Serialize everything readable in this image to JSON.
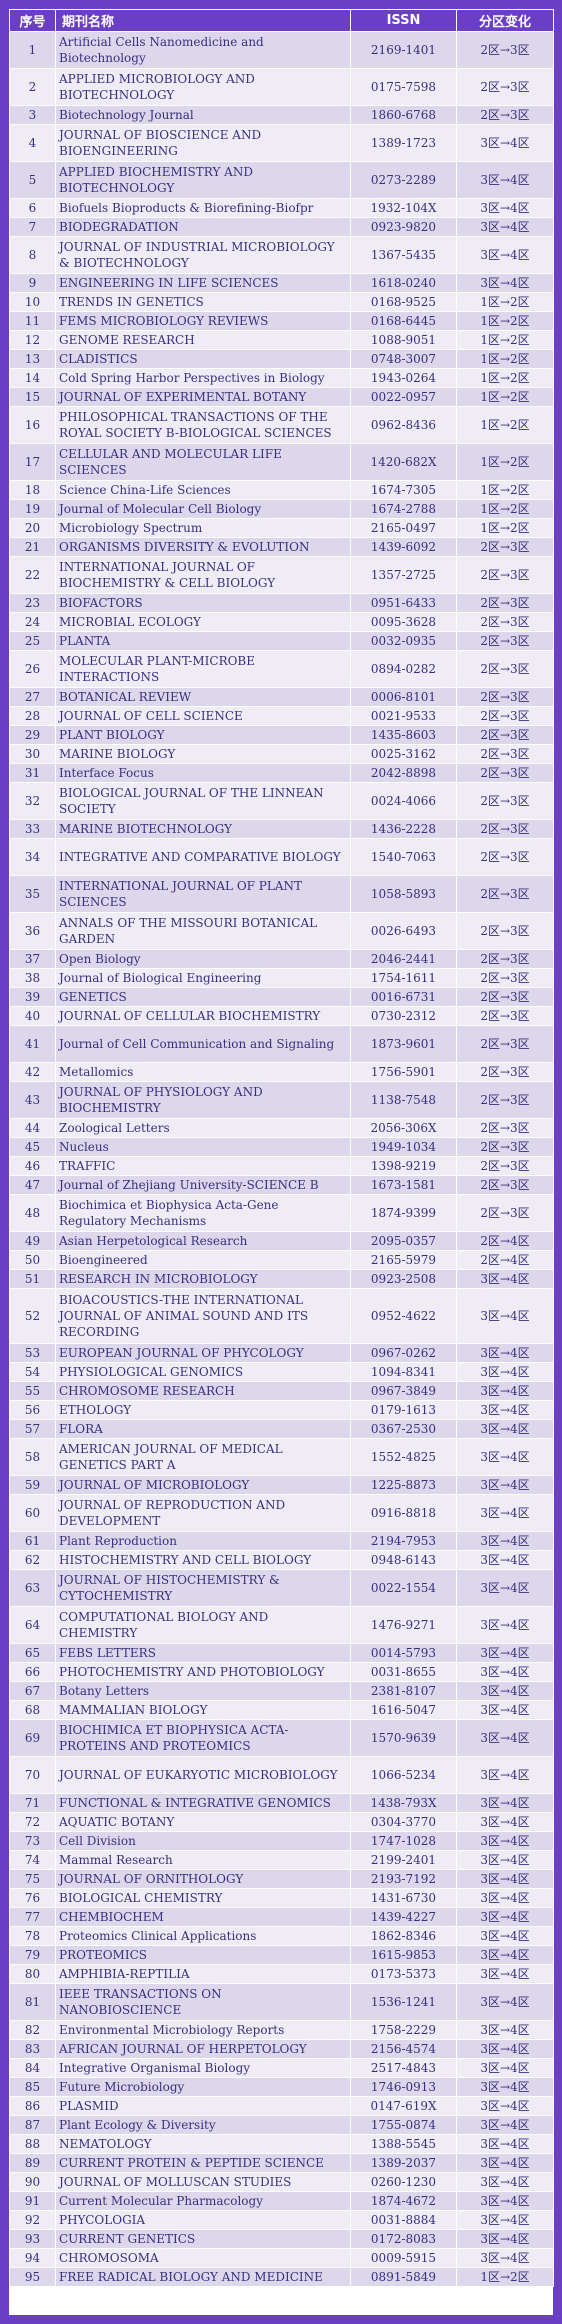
{
  "header": {
    "no": "序号",
    "name": "期刊名称",
    "issn": "ISSN",
    "change": "分区变化"
  },
  "rows": [
    {
      "no": "1",
      "name": "Artificial Cells Nanomedicine and Biotechnology",
      "issn": "2169-1401",
      "change": "2区→3区"
    },
    {
      "no": "2",
      "name": "APPLIED MICROBIOLOGY AND BIOTECHNOLOGY",
      "issn": "0175-7598",
      "change": "2区→3区"
    },
    {
      "no": "3",
      "name": "Biotechnology Journal",
      "issn": "1860-6768",
      "change": "2区→3区"
    },
    {
      "no": "4",
      "name": "JOURNAL OF BIOSCIENCE AND BIOENGINEERING",
      "issn": "1389-1723",
      "change": "3区→4区"
    },
    {
      "no": "5",
      "name": "APPLIED BIOCHEMISTRY AND BIOTECHNOLOGY",
      "issn": "0273-2289",
      "change": "3区→4区"
    },
    {
      "no": "6",
      "name": "Biofuels Bioproducts & Biorefining-Biofpr",
      "issn": "1932-104X",
      "change": "3区→4区"
    },
    {
      "no": "7",
      "name": "BIODEGRADATION",
      "issn": "0923-9820",
      "change": "3区→4区"
    },
    {
      "no": "8",
      "name": "JOURNAL OF INDUSTRIAL MICROBIOLOGY & BIOTECHNOLOGY",
      "issn": "1367-5435",
      "change": "3区→4区"
    },
    {
      "no": "9",
      "name": "ENGINEERING IN LIFE SCIENCES",
      "issn": "1618-0240",
      "change": "3区→4区"
    },
    {
      "no": "10",
      "name": "TRENDS IN GENETICS",
      "issn": "0168-9525",
      "change": "1区→2区"
    },
    {
      "no": "11",
      "name": "FEMS MICROBIOLOGY REVIEWS",
      "issn": "0168-6445",
      "change": "1区→2区"
    },
    {
      "no": "12",
      "name": "GENOME RESEARCH",
      "issn": "1088-9051",
      "change": "1区→2区"
    },
    {
      "no": "13",
      "name": "CLADISTICS",
      "issn": "0748-3007",
      "change": "1区→2区"
    },
    {
      "no": "14",
      "name": "Cold Spring Harbor Perspectives in Biology",
      "issn": "1943-0264",
      "change": "1区→2区"
    },
    {
      "no": "15",
      "name": "JOURNAL OF EXPERIMENTAL BOTANY",
      "issn": "0022-0957",
      "change": "1区→2区"
    },
    {
      "no": "16",
      "name": "PHILOSOPHICAL TRANSACTIONS OF THE ROYAL SOCIETY B-BIOLOGICAL SCIENCES",
      "issn": "0962-8436",
      "change": "1区→2区"
    },
    {
      "no": "17",
      "name": "CELLULAR AND MOLECULAR LIFE SCIENCES",
      "issn": "1420-682X",
      "change": "1区→2区"
    },
    {
      "no": "18",
      "name": "Science China-Life Sciences",
      "issn": "1674-7305",
      "change": "1区→2区"
    },
    {
      "no": "19",
      "name": "Journal of Molecular Cell Biology",
      "issn": "1674-2788",
      "change": "1区→2区"
    },
    {
      "no": "20",
      "name": "Microbiology Spectrum",
      "issn": "2165-0497",
      "change": "1区→2区"
    },
    {
      "no": "21",
      "name": "ORGANISMS DIVERSITY & EVOLUTION",
      "issn": "1439-6092",
      "change": "2区→3区"
    },
    {
      "no": "22",
      "name": "INTERNATIONAL JOURNAL OF BIOCHEMISTRY & CELL BIOLOGY",
      "issn": "1357-2725",
      "change": "2区→3区"
    },
    {
      "no": "23",
      "name": "BIOFACTORS",
      "issn": "0951-6433",
      "change": "2区→3区"
    },
    {
      "no": "24",
      "name": "MICROBIAL ECOLOGY",
      "issn": "0095-3628",
      "change": "2区→3区"
    },
    {
      "no": "25",
      "name": "PLANTA",
      "issn": "0032-0935",
      "change": "2区→3区"
    },
    {
      "no": "26",
      "name": "MOLECULAR PLANT-MICROBE INTERACTIONS",
      "issn": "0894-0282",
      "change": "2区→3区"
    },
    {
      "no": "27",
      "name": "BOTANICAL REVIEW",
      "issn": "0006-8101",
      "change": "2区→3区"
    },
    {
      "no": "28",
      "name": "JOURNAL OF CELL SCIENCE",
      "issn": "0021-9533",
      "change": "2区→3区"
    },
    {
      "no": "29",
      "name": "PLANT BIOLOGY",
      "issn": "1435-8603",
      "change": "2区→3区"
    },
    {
      "no": "30",
      "name": "MARINE BIOLOGY",
      "issn": "0025-3162",
      "change": "2区→3区"
    },
    {
      "no": "31",
      "name": "Interface Focus",
      "issn": "2042-8898",
      "change": "2区→3区"
    },
    {
      "no": "32",
      "name": "BIOLOGICAL JOURNAL OF THE LINNEAN SOCIETY",
      "issn": "0024-4066",
      "change": "2区→3区"
    },
    {
      "no": "33",
      "name": "MARINE BIOTECHNOLOGY",
      "issn": "1436-2228",
      "change": "2区→3区"
    },
    {
      "no": "34",
      "name": "INTEGRATIVE AND COMPARATIVE BIOLOGY",
      "issn": "1540-7063",
      "change": "2区→3区"
    },
    {
      "no": "35",
      "name": "INTERNATIONAL JOURNAL OF PLANT SCIENCES",
      "issn": "1058-5893",
      "change": "2区→3区"
    },
    {
      "no": "36",
      "name": "ANNALS OF THE MISSOURI BOTANICAL GARDEN",
      "issn": "0026-6493",
      "change": "2区→3区"
    },
    {
      "no": "37",
      "name": "Open Biology",
      "issn": "2046-2441",
      "change": "2区→3区"
    },
    {
      "no": "38",
      "name": "Journal of Biological Engineering",
      "issn": "1754-1611",
      "change": "2区→3区"
    },
    {
      "no": "39",
      "name": "GENETICS",
      "issn": "0016-6731",
      "change": "2区→3区"
    },
    {
      "no": "40",
      "name": "JOURNAL OF CELLULAR BIOCHEMISTRY",
      "issn": "0730-2312",
      "change": "2区→3区"
    },
    {
      "no": "41",
      "name": "Journal of Cell Communication and Signaling",
      "issn": "1873-9601",
      "change": "2区→3区"
    },
    {
      "no": "42",
      "name": "Metallomics",
      "issn": "1756-5901",
      "change": "2区→3区"
    },
    {
      "no": "43",
      "name": "JOURNAL OF PHYSIOLOGY AND BIOCHEMISTRY",
      "issn": "1138-7548",
      "change": "2区→3区"
    },
    {
      "no": "44",
      "name": "Zoological Letters",
      "issn": "2056-306X",
      "change": "2区→3区"
    },
    {
      "no": "45",
      "name": "Nucleus",
      "issn": "1949-1034",
      "change": "2区→3区"
    },
    {
      "no": "46",
      "name": "TRAFFIC",
      "issn": "1398-9219",
      "change": "2区→3区"
    },
    {
      "no": "47",
      "name": "Journal of Zhejiang University-SCIENCE B",
      "issn": "1673-1581",
      "change": "2区→3区"
    },
    {
      "no": "48",
      "name": "Biochimica et Biophysica Acta-Gene Regulatory Mechanisms",
      "issn": "1874-9399",
      "change": "2区→3区"
    },
    {
      "no": "49",
      "name": "Asian Herpetological Research",
      "issn": "2095-0357",
      "change": "2区→4区"
    },
    {
      "no": "50",
      "name": "Bioengineered",
      "issn": "2165-5979",
      "change": "2区→4区"
    },
    {
      "no": "51",
      "name": "RESEARCH IN MICROBIOLOGY",
      "issn": "0923-2508",
      "change": "3区→4区"
    },
    {
      "no": "52",
      "name": "BIOACOUSTICS-THE INTERNATIONAL JOURNAL OF ANIMAL SOUND AND ITS RECORDING",
      "issn": "0952-4622",
      "change": "3区→4区"
    },
    {
      "no": "53",
      "name": "EUROPEAN JOURNAL OF PHYCOLOGY",
      "issn": "0967-0262",
      "change": "3区→4区"
    },
    {
      "no": "54",
      "name": "PHYSIOLOGICAL GENOMICS",
      "issn": "1094-8341",
      "change": "3区→4区"
    },
    {
      "no": "55",
      "name": "CHROMOSOME RESEARCH",
      "issn": "0967-3849",
      "change": "3区→4区"
    },
    {
      "no": "56",
      "name": "ETHOLOGY",
      "issn": "0179-1613",
      "change": "3区→4区"
    },
    {
      "no": "57",
      "name": "FLORA",
      "issn": "0367-2530",
      "change": "3区→4区"
    },
    {
      "no": "58",
      "name": "AMERICAN JOURNAL OF MEDICAL GENETICS PART A",
      "issn": "1552-4825",
      "change": "3区→4区"
    },
    {
      "no": "59",
      "name": "JOURNAL OF MICROBIOLOGY",
      "issn": "1225-8873",
      "change": "3区→4区"
    },
    {
      "no": "60",
      "name": "JOURNAL OF REPRODUCTION AND DEVELOPMENT",
      "issn": "0916-8818",
      "change": "3区→4区"
    },
    {
      "no": "61",
      "name": "Plant Reproduction",
      "issn": "2194-7953",
      "change": "3区→4区"
    },
    {
      "no": "62",
      "name": "HISTOCHEMISTRY AND CELL BIOLOGY",
      "issn": "0948-6143",
      "change": "3区→4区"
    },
    {
      "no": "63",
      "name": "JOURNAL OF HISTOCHEMISTRY & CYTOCHEMISTRY",
      "issn": "0022-1554",
      "change": "3区→4区"
    },
    {
      "no": "64",
      "name": "COMPUTATIONAL BIOLOGY AND CHEMISTRY",
      "issn": "1476-9271",
      "change": "3区→4区"
    },
    {
      "no": "65",
      "name": "FEBS LETTERS",
      "issn": "0014-5793",
      "change": "3区→4区"
    },
    {
      "no": "66",
      "name": "PHOTOCHEMISTRY AND PHOTOBIOLOGY",
      "issn": "0031-8655",
      "change": "3区→4区"
    },
    {
      "no": "67",
      "name": "Botany Letters",
      "issn": "2381-8107",
      "change": "3区→4区"
    },
    {
      "no": "68",
      "name": "MAMMALIAN BIOLOGY",
      "issn": "1616-5047",
      "change": "3区→4区"
    },
    {
      "no": "69",
      "name": "BIOCHIMICA ET BIOPHYSICA ACTA-PROTEINS AND PROTEOMICS",
      "issn": "1570-9639",
      "change": "3区→4区"
    },
    {
      "no": "70",
      "name": "JOURNAL OF EUKARYOTIC MICROBIOLOGY",
      "issn": "1066-5234",
      "change": "3区→4区"
    },
    {
      "no": "71",
      "name": "FUNCTIONAL & INTEGRATIVE GENOMICS",
      "issn": "1438-793X",
      "change": "3区→4区"
    },
    {
      "no": "72",
      "name": "AQUATIC BOTANY",
      "issn": "0304-3770",
      "change": "3区→4区"
    },
    {
      "no": "73",
      "name": "Cell Division",
      "issn": "1747-1028",
      "change": "3区→4区"
    },
    {
      "no": "74",
      "name": "Mammal Research",
      "issn": "2199-2401",
      "change": "3区→4区"
    },
    {
      "no": "75",
      "name": "JOURNAL OF ORNITHOLOGY",
      "issn": "2193-7192",
      "change": "3区→4区"
    },
    {
      "no": "76",
      "name": "BIOLOGICAL CHEMISTRY",
      "issn": "1431-6730",
      "change": "3区→4区"
    },
    {
      "no": "77",
      "name": "CHEMBIOCHEM",
      "issn": "1439-4227",
      "change": "3区→4区"
    },
    {
      "no": "78",
      "name": "Proteomics Clinical Applications",
      "issn": "1862-8346",
      "change": "3区→4区"
    },
    {
      "no": "79",
      "name": "PROTEOMICS",
      "issn": "1615-9853",
      "change": "3区→4区"
    },
    {
      "no": "80",
      "name": "AMPHIBIA-REPTILIA",
      "issn": "0173-5373",
      "change": "3区→4区"
    },
    {
      "no": "81",
      "name": "IEEE TRANSACTIONS ON NANOBIOSCIENCE",
      "issn": "1536-1241",
      "change": "3区→4区"
    },
    {
      "no": "82",
      "name": "Environmental Microbiology Reports",
      "issn": "1758-2229",
      "change": "3区→4区"
    },
    {
      "no": "83",
      "name": "AFRICAN JOURNAL OF HERPETOLOGY",
      "issn": "2156-4574",
      "change": "3区→4区"
    },
    {
      "no": "84",
      "name": "Integrative Organismal Biology",
      "issn": "2517-4843",
      "change": "3区→4区"
    },
    {
      "no": "85",
      "name": "Future Microbiology",
      "issn": "1746-0913",
      "change": "3区→4区"
    },
    {
      "no": "86",
      "name": "PLASMID",
      "issn": "0147-619X",
      "change": "3区→4区"
    },
    {
      "no": "87",
      "name": "Plant Ecology & Diversity",
      "issn": "1755-0874",
      "change": "3区→4区"
    },
    {
      "no": "88",
      "name": "NEMATOLOGY",
      "issn": "1388-5545",
      "change": "3区→4区"
    },
    {
      "no": "89",
      "name": "CURRENT PROTEIN & PEPTIDE SCIENCE",
      "issn": "1389-2037",
      "change": "3区→4区"
    },
    {
      "no": "90",
      "name": "JOURNAL OF MOLLUSCAN STUDIES",
      "issn": "0260-1230",
      "change": "3区→4区"
    },
    {
      "no": "91",
      "name": "Current Molecular Pharmacology",
      "issn": "1874-4672",
      "change": "3区→4区"
    },
    {
      "no": "92",
      "name": "PHYCOLOGIA",
      "issn": "0031-8884",
      "change": "3区→4区"
    },
    {
      "no": "93",
      "name": "CURRENT GENETICS",
      "issn": "0172-8083",
      "change": "3区→4区"
    },
    {
      "no": "94",
      "name": "CHROMOSOMA",
      "issn": "0009-5915",
      "change": "3区→4区"
    },
    {
      "no": "95",
      "name": "FREE RADICAL BIOLOGY AND MEDICINE",
      "issn": "0891-5849",
      "change": "1区→2区"
    }
  ]
}
